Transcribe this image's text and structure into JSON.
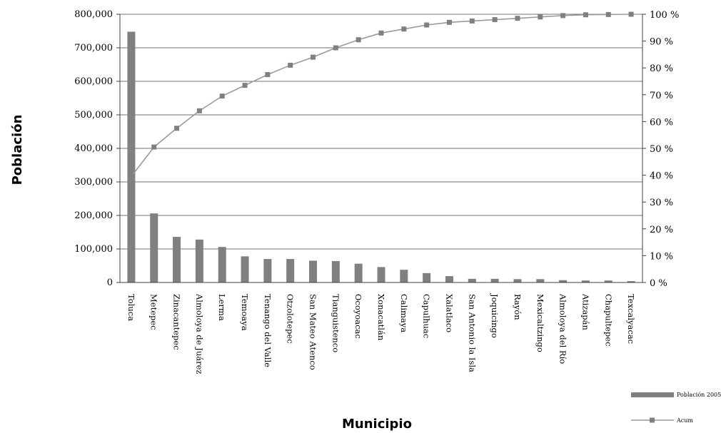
{
  "chart_data": {
    "type": "bar",
    "title": "",
    "xlabel": "Municipio",
    "ylabel": "Población",
    "categories": [
      "Toluca",
      "Metepec",
      "Zinacantepec",
      "Almoloya de Juárez",
      "Lerma",
      "Temoaya",
      "Tenango del Valle",
      "Otzolotepec",
      "San Mateo Atenco",
      "Tianguistenco",
      "Ocoyoacac",
      "Xonacatlán",
      "Calimaya",
      "Capulhuac",
      "Xalatlaco",
      "San Antonio la Isla",
      "Joquicingo",
      "Rayón",
      "Mexicaltzingo",
      "Almoloya del Río",
      "Atizapán",
      "Chapultepec",
      "Texcalyacac"
    ],
    "series": [
      {
        "name": "Población 2005",
        "type": "bar",
        "axis": "left",
        "values": [
          748000,
          206000,
          136000,
          128000,
          106000,
          78000,
          70000,
          70000,
          65000,
          64000,
          56000,
          46000,
          38000,
          28000,
          19000,
          11000,
          11000,
          10000,
          10000,
          7000,
          6000,
          6000,
          4000
        ]
      },
      {
        "name": "Acum",
        "type": "line",
        "axis": "right",
        "values": [
          39.5,
          50.5,
          57.5,
          64,
          69.5,
          73.5,
          77.5,
          81,
          84,
          87.5,
          90.5,
          93,
          94.5,
          96,
          97,
          97.5,
          98,
          98.5,
          99,
          99.5,
          99.8,
          99.9,
          100
        ]
      }
    ],
    "ylim": [
      0,
      800000
    ],
    "y_ticks": [
      "0",
      "100,000",
      "200,000",
      "300,000",
      "400,000",
      "500,000",
      "600,000",
      "700,000",
      "800,000"
    ],
    "y2lim": [
      0,
      100
    ],
    "y2_ticks": [
      "0 %",
      "10 %",
      "20 %",
      "30 %",
      "40 %",
      "50 %",
      "60 %",
      "70 %",
      "80 %",
      "90 %",
      "100 %"
    ],
    "grid": true,
    "legend_position": "bottom-right",
    "legend": [
      {
        "label": "Población 2005",
        "kind": "bar"
      },
      {
        "label": "Acum",
        "kind": "line-marker"
      }
    ],
    "colors": {
      "bar": "#808080",
      "line": "#9a9a9a",
      "marker": "#808080",
      "grid": "#707070",
      "axis": "#404040"
    }
  }
}
